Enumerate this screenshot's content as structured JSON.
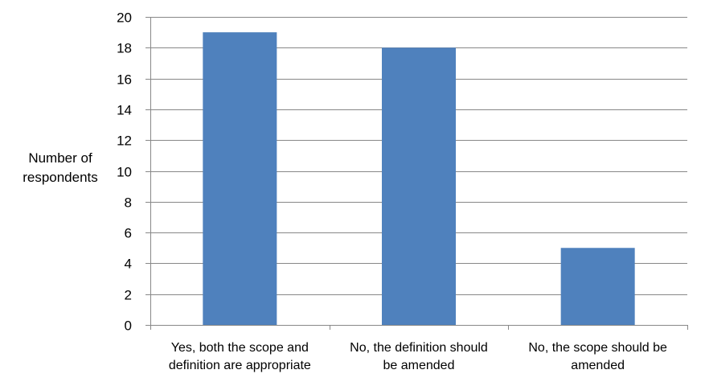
{
  "chart_data": {
    "type": "bar",
    "categories": [
      [
        "Yes, both the scope and",
        "definition are appropriate"
      ],
      [
        "No, the definition should",
        "be amended"
      ],
      [
        "No, the scope should be",
        "amended"
      ]
    ],
    "values": [
      19,
      18,
      5
    ],
    "ylabel": [
      "Number of",
      "respondents"
    ],
    "ylim": [
      0,
      20
    ],
    "yticks": [
      0,
      2,
      4,
      6,
      8,
      10,
      12,
      14,
      16,
      18,
      20
    ],
    "bar_color": "#4f81bd",
    "grid": true
  }
}
